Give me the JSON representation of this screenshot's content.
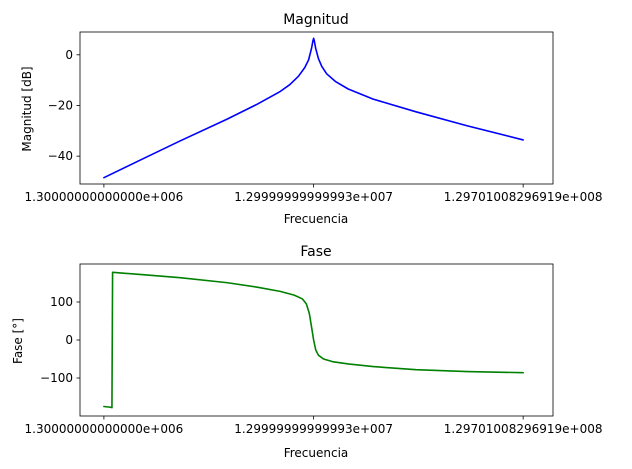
{
  "chart_data": [
    {
      "type": "line",
      "title": "Magnitud",
      "xlabel": "Frecuencia",
      "ylabel": "Magnitud [dB]",
      "xscale": "log",
      "xlim": [
        1000000,
        180000000
      ],
      "ylim": [
        -51,
        9
      ],
      "xticks": [
        {
          "value": 1300000,
          "label": "1.30000000000000e+006"
        },
        {
          "value": 12999999.9999993,
          "label": "1.29999999999993e+007"
        },
        {
          "value": 129701008.296919,
          "label": "1.29701008296919e+008"
        }
      ],
      "yticks": [
        {
          "value": 0,
          "label": "0"
        },
        {
          "value": -20,
          "label": "−20"
        },
        {
          "value": -40,
          "label": "−40"
        }
      ],
      "grid": false,
      "color": "#0000ff",
      "series": [
        {
          "x": [
            1300000,
            2000000,
            3000000,
            5000000,
            7000000,
            9000000,
            10000000,
            11000000,
            11800000,
            12300000,
            12700000,
            12900000,
            13000000,
            13100000,
            13300000,
            13700000,
            14200000,
            15000000,
            16500000,
            19000000,
            25000000,
            40000000,
            70000000,
            129701008
          ],
          "y": [
            -48.5,
            -41,
            -34,
            -25.5,
            -19.5,
            -14.5,
            -11.8,
            -8.5,
            -5,
            -2,
            2.5,
            5.5,
            6.5,
            5.5,
            2.5,
            -1.5,
            -4.5,
            -7.5,
            -10.5,
            -13.5,
            -17.5,
            -22.5,
            -28,
            -33.6
          ]
        }
      ]
    },
    {
      "type": "line",
      "title": "Fase",
      "xlabel": "Frecuencia",
      "ylabel": "Fase [°]",
      "xscale": "log",
      "xlim": [
        1000000,
        180000000
      ],
      "ylim": [
        -200,
        200
      ],
      "xticks": [
        {
          "value": 1300000,
          "label": "1.30000000000000e+006"
        },
        {
          "value": 12999999.9999993,
          "label": "1.29999999999993e+007"
        },
        {
          "value": 129701008.296919,
          "label": "1.29701008296919e+008"
        }
      ],
      "yticks": [
        {
          "value": 100,
          "label": "100"
        },
        {
          "value": 0,
          "label": "0"
        },
        {
          "value": -100,
          "label": "−100"
        }
      ],
      "grid": false,
      "color": "#008000",
      "series": [
        {
          "x": [
            1300000,
            1400000,
            1420000,
            1430000,
            2000000,
            3000000,
            5000000,
            7000000,
            9000000,
            10500000,
            11500000,
            12000000,
            12400000,
            12700000,
            13000000,
            13300000,
            13700000,
            14500000,
            16000000,
            19000000,
            25000000,
            40000000,
            70000000,
            129701008
          ],
          "y": [
            -175,
            -177,
            -178,
            178,
            172,
            164,
            151,
            139,
            128,
            118,
            108,
            95,
            70,
            35,
            0,
            -26,
            -40,
            -50,
            -57,
            -63,
            -70,
            -78,
            -83,
            -86
          ]
        }
      ]
    }
  ]
}
